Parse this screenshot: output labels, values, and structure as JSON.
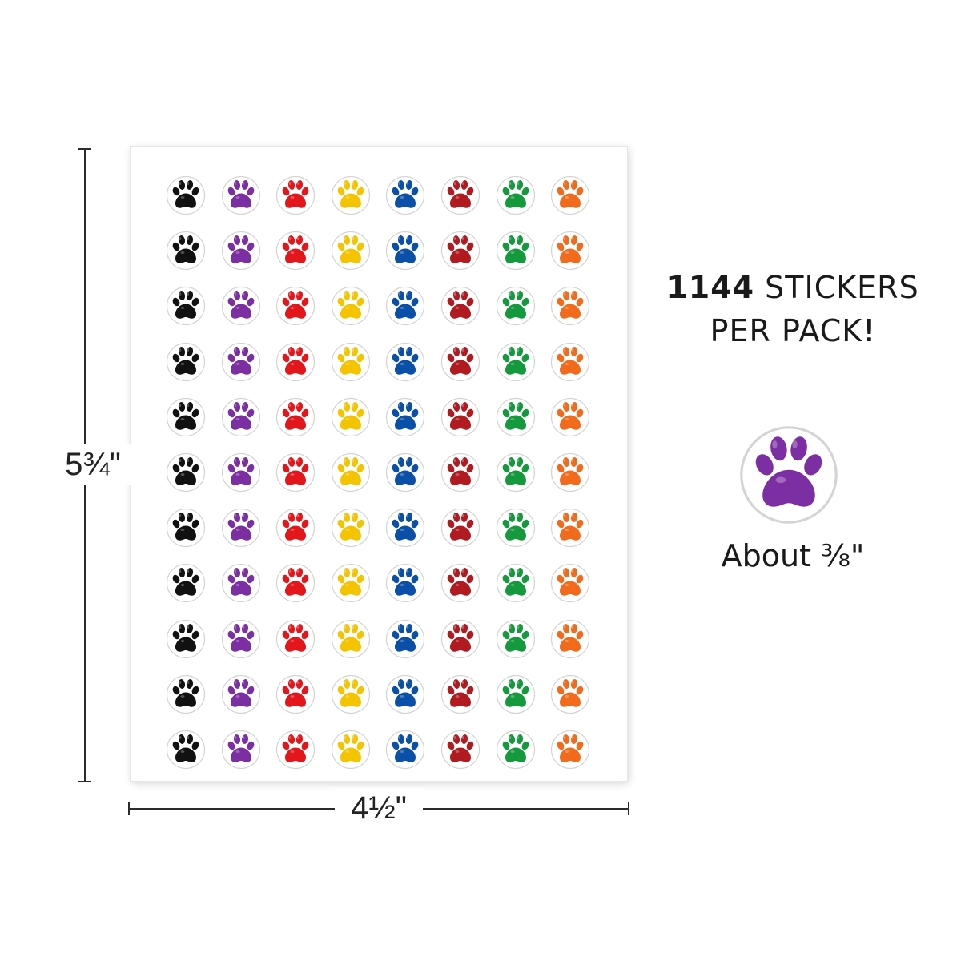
{
  "headline": {
    "count": "1144",
    "line1_rest": " STICKERS",
    "line2": "PER PACK!"
  },
  "dimensions": {
    "height_label": "5¾\"",
    "width_label": "4½\""
  },
  "sample": {
    "size_note": "About ³⁄₈\"",
    "color": "#7b2fa3"
  },
  "sheet": {
    "rows": 11,
    "columns": 8,
    "column_colors": [
      "#111111",
      "#7b2fa3",
      "#e3161c",
      "#f5c400",
      "#0a4fa8",
      "#b11a1f",
      "#149a3c",
      "#f26b1d"
    ],
    "column_icons": [
      "black-paw-sticker-icon",
      "purple-paw-sticker-icon",
      "red-paw-sticker-icon",
      "yellow-paw-sticker-icon",
      "blue-paw-sticker-icon",
      "dark-red-paw-sticker-icon",
      "green-paw-sticker-icon",
      "orange-paw-sticker-icon"
    ]
  }
}
